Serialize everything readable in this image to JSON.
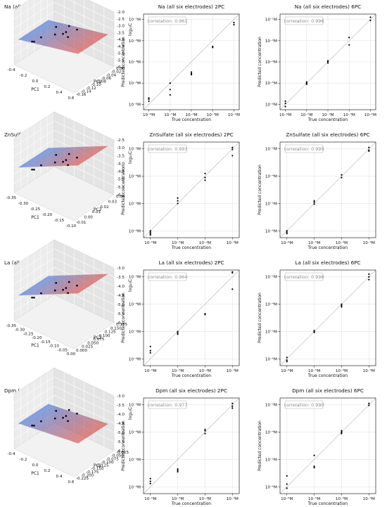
{
  "rows": [
    {
      "scatter3d": {
        "title": "Na  (all six electrodes)  2PC",
        "xlabel": "PC1",
        "ylabel": "PC2",
        "zlabel": "log₁₀C",
        "xticks": [
          "-0.4",
          "-0.2",
          "0.0",
          "0.2",
          "0.4",
          "0.6"
        ],
        "yticks": [
          "0.00",
          "-0.02",
          "-0.04",
          "-0.06",
          "-0.08",
          "-0.10",
          "-0.12",
          "-0.14",
          "-0.16"
        ],
        "zticks": [
          "-2.0",
          "-2.5",
          "-3.0",
          "-3.5",
          "-4.0",
          "-4.5",
          "-5.0",
          "-5.5",
          "-6.0"
        ],
        "plane_tilt": 0.25
      },
      "panels": [
        {
          "title": "Na  (all six electrodes)  2PC",
          "correlation": "correlation: 0.961",
          "xlabel": "True concentration",
          "ylabel": "Predicted concentration",
          "xticks": [
            {
              "exp": -6,
              "label": "10⁻⁶M"
            },
            {
              "exp": -5,
              "label": "10⁻⁵M"
            },
            {
              "exp": -4,
              "label": "10⁻⁴M"
            },
            {
              "exp": -3,
              "label": "10⁻³M"
            },
            {
              "exp": -2,
              "label": "10⁻²M"
            }
          ],
          "yticks": [
            {
              "exp": -6,
              "label": "10⁻⁶M"
            },
            {
              "exp": -5,
              "label": "10⁻⁵M"
            },
            {
              "exp": -4,
              "label": "10⁻⁴M"
            },
            {
              "exp": -3,
              "label": "10⁻³M"
            },
            {
              "exp": -2,
              "label": "10⁻²M"
            }
          ],
          "points": [
            [
              -6,
              -5.85
            ],
            [
              -6,
              -5.75
            ],
            [
              -6,
              -5.7
            ],
            [
              -5,
              -5.3
            ],
            [
              -5,
              -5.55
            ],
            [
              -5,
              -5.0
            ],
            [
              -4,
              -4.55
            ],
            [
              -4,
              -4.48
            ],
            [
              -4,
              -4.6
            ],
            [
              -3,
              -3.32
            ],
            [
              -3,
              -3.28
            ],
            [
              -2,
              -2.15
            ],
            [
              -2,
              -2.25
            ]
          ]
        },
        {
          "title": "Na  (all six electrodes)  6PC",
          "correlation": "correlation: 0.996",
          "xlabel": "True concentration",
          "ylabel": "Predicted concentration",
          "xticks": [
            {
              "exp": -6,
              "label": "10⁻⁶M"
            },
            {
              "exp": -5,
              "label": "10⁻⁵M"
            },
            {
              "exp": -4,
              "label": "10⁻⁴M"
            },
            {
              "exp": -3,
              "label": "10⁻³M"
            },
            {
              "exp": -2,
              "label": "10⁻²M"
            }
          ],
          "yticks": [
            {
              "exp": -6,
              "label": "10⁻⁶M"
            },
            {
              "exp": -5,
              "label": "10⁻⁵M"
            },
            {
              "exp": -4,
              "label": "10⁻⁴M"
            },
            {
              "exp": -3,
              "label": "10⁻³M"
            },
            {
              "exp": -2,
              "label": "10⁻²M"
            }
          ],
          "points": [
            [
              -6,
              -5.95
            ],
            [
              -6,
              -5.85
            ],
            [
              -6,
              -6.1
            ],
            [
              -5,
              -5.05
            ],
            [
              -5,
              -5.0
            ],
            [
              -5,
              -4.95
            ],
            [
              -4,
              -4.05
            ],
            [
              -4,
              -3.98
            ],
            [
              -4,
              -3.95
            ],
            [
              -3,
              -2.85
            ],
            [
              -3,
              -3.2
            ],
            [
              -2,
              -1.9
            ],
            [
              -2,
              -2.05
            ]
          ]
        }
      ]
    },
    {
      "scatter3d": {
        "title": "ZnSulfate  (all six electrodes)  2PC",
        "xlabel": "PC1",
        "ylabel": "PC2",
        "zlabel": "log₁₀C",
        "xticks": [
          "-0.35",
          "-0.30",
          "-0.25",
          "-0.20",
          "-0.15",
          "-0.10"
        ],
        "yticks": [
          "0.04",
          "0.03",
          "0.02",
          "0.01",
          "0.00",
          "-0.01"
        ],
        "zticks": [
          "-2.5",
          "-3.0",
          "-3.5",
          "-4.0",
          "-4.5",
          "-5.0",
          "-5.5",
          "-6.0"
        ],
        "plane_tilt": 0.55
      },
      "panels": [
        {
          "title": "ZnSulfate  (all six electrodes)  2PC",
          "correlation": "correlation: 0.993",
          "xlabel": "True concentration",
          "ylabel": "Predicted concentration",
          "xticks": [
            {
              "exp": -6,
              "label": "10⁻⁶M"
            },
            {
              "exp": -5,
              "label": "10⁻⁵M"
            },
            {
              "exp": -4,
              "label": "10⁻⁴M"
            },
            {
              "exp": -3,
              "label": "10⁻³M"
            }
          ],
          "yticks": [
            {
              "exp": -6,
              "label": "10⁻⁶M"
            },
            {
              "exp": -5,
              "label": "10⁻⁵M"
            },
            {
              "exp": -4,
              "label": "10⁻⁴M"
            },
            {
              "exp": -3,
              "label": "10⁻³M"
            }
          ],
          "points": [
            [
              -6,
              -6.0
            ],
            [
              -6,
              -6.05
            ],
            [
              -6,
              -6.1
            ],
            [
              -6,
              -6.15
            ],
            [
              -5,
              -4.8
            ],
            [
              -5,
              -4.9
            ],
            [
              -5,
              -5.0
            ],
            [
              -4,
              -3.9
            ],
            [
              -4,
              -4.05
            ],
            [
              -4,
              -4.15
            ],
            [
              -3,
              -2.95
            ],
            [
              -3,
              -3.02
            ],
            [
              -3,
              -3.25
            ]
          ]
        },
        {
          "title": "ZnSulfate  (all six electrodes)  6PC",
          "correlation": "correlation: 0.999",
          "xlabel": "True concentration",
          "ylabel": "Predicted concentration",
          "xticks": [
            {
              "exp": -6,
              "label": "10⁻⁶M"
            },
            {
              "exp": -5,
              "label": "10⁻⁵M"
            },
            {
              "exp": -4,
              "label": "10⁻⁴M"
            },
            {
              "exp": -3,
              "label": "10⁻³M"
            }
          ],
          "yticks": [
            {
              "exp": -6,
              "label": "10⁻⁶M"
            },
            {
              "exp": -5,
              "label": "10⁻⁵M"
            },
            {
              "exp": -4,
              "label": "10⁻⁴M"
            },
            {
              "exp": -3,
              "label": "10⁻³M"
            }
          ],
          "points": [
            [
              -6,
              -6.0
            ],
            [
              -6,
              -6.05
            ],
            [
              -6,
              -6.1
            ],
            [
              -5,
              -4.9
            ],
            [
              -5,
              -4.95
            ],
            [
              -5,
              -5.02
            ],
            [
              -4,
              -3.95
            ],
            [
              -4,
              -4.05
            ],
            [
              -3,
              -2.95
            ],
            [
              -3,
              -3.05
            ],
            [
              -3,
              -3.08
            ]
          ]
        }
      ]
    },
    {
      "scatter3d": {
        "title": "La  (all six electrodes)  2PC",
        "xlabel": "PC1",
        "ylabel": "PC2",
        "zlabel": "log₁₀C",
        "xticks": [
          "-0.35",
          "-0.30",
          "-0.25",
          "-0.20",
          "-0.15",
          "-0.10",
          "-0.05",
          "0.00"
        ],
        "yticks": [
          "0.175",
          "0.150",
          "0.125",
          "0.100",
          "0.075",
          "0.050",
          "0.025",
          "0.000"
        ],
        "zticks": [
          "-3.0",
          "-3.5",
          "-4.0",
          "-4.5",
          "-5.0",
          "-5.5",
          "-6.0"
        ],
        "plane_tilt": 0.55
      },
      "panels": [
        {
          "title": "La  (all six electrodes)  2PC",
          "correlation": "correlation: 0.964",
          "xlabel": "True concentration",
          "ylabel": "Predicted concentration",
          "xticks": [
            {
              "exp": -6,
              "label": "10⁻⁶M"
            },
            {
              "exp": -5,
              "label": "10⁻⁵M"
            },
            {
              "exp": -4,
              "label": "10⁻⁴M"
            },
            {
              "exp": -3,
              "label": "10⁻³M"
            }
          ],
          "yticks": [
            {
              "exp": -6,
              "label": "10⁻⁶M"
            },
            {
              "exp": -5,
              "label": "10⁻⁵M"
            },
            {
              "exp": -4,
              "label": "10⁻⁴M"
            },
            {
              "exp": -3,
              "label": "10⁻³M"
            }
          ],
          "points": [
            [
              -6,
              -5.7
            ],
            [
              -6,
              -5.78
            ],
            [
              -6,
              -5.55
            ],
            [
              -5,
              -5.05
            ],
            [
              -5,
              -5.0
            ],
            [
              -5,
              -5.1
            ],
            [
              -4,
              -4.35
            ],
            [
              -4,
              -4.38
            ],
            [
              -3,
              -2.82
            ],
            [
              -3,
              -2.85
            ],
            [
              -3,
              -3.45
            ]
          ]
        },
        {
          "title": "La  (all six electrodes)  6PC",
          "correlation": "correlation: 0.998",
          "xlabel": "True concentration",
          "ylabel": "Predicted concentration",
          "xticks": [
            {
              "exp": -6,
              "label": "10⁻⁶M"
            },
            {
              "exp": -5,
              "label": "10⁻⁵M"
            },
            {
              "exp": -4,
              "label": "10⁻⁴M"
            },
            {
              "exp": -3,
              "label": "10⁻³M"
            }
          ],
          "yticks": [
            {
              "exp": -6,
              "label": "10⁻⁶M"
            },
            {
              "exp": -5,
              "label": "10⁻⁵M"
            },
            {
              "exp": -4,
              "label": "10⁻⁴M"
            },
            {
              "exp": -3,
              "label": "10⁻³M"
            }
          ],
          "points": [
            [
              -6,
              -5.95
            ],
            [
              -6,
              -6.05
            ],
            [
              -6,
              -6.1
            ],
            [
              -5,
              -5.0
            ],
            [
              -5,
              -4.97
            ],
            [
              -5,
              -5.03
            ],
            [
              -4,
              -4.1
            ],
            [
              -4,
              -4.05
            ],
            [
              -4,
              -4.0
            ],
            [
              -3,
              -2.9
            ],
            [
              -3,
              -3.0
            ],
            [
              -3,
              -3.1
            ]
          ]
        }
      ]
    },
    {
      "scatter3d": {
        "title": "Dpm  (all six electrodes)  2PC",
        "xlabel": "PC1",
        "ylabel": "PC2",
        "zlabel": "log₁₀C",
        "xticks": [
          "-0.4",
          "-0.2",
          "0.0",
          "0.2",
          "0.4",
          "0.6"
        ],
        "yticks": [
          "-0.025",
          "-0.050",
          "-0.075",
          "-0.100",
          "-0.125",
          "-0.150",
          "-0.175",
          "-0.200",
          "-0.225"
        ],
        "zticks": [
          "-3.0",
          "-3.5",
          "-4.0",
          "-4.5",
          "-5.0",
          "-5.5",
          "-6.0"
        ],
        "plane_tilt": 0.15
      },
      "panels": [
        {
          "title": "Dpm  (all six electrodes)  2PC",
          "correlation": "correlation: 0.977",
          "xlabel": "True concentration",
          "ylabel": "Predicted concentration",
          "xticks": [
            {
              "exp": -6,
              "label": "10⁻⁶M"
            },
            {
              "exp": -5,
              "label": "10⁻⁵M"
            },
            {
              "exp": -4,
              "label": "10⁻⁴M"
            },
            {
              "exp": -3,
              "label": "10⁻³M"
            }
          ],
          "yticks": [
            {
              "exp": -6,
              "label": "10⁻⁶M"
            },
            {
              "exp": -5,
              "label": "10⁻⁵M"
            },
            {
              "exp": -4,
              "label": "10⁻⁴M"
            },
            {
              "exp": -3,
              "label": "10⁻³M"
            }
          ],
          "points": [
            [
              -6,
              -5.7
            ],
            [
              -6,
              -5.8
            ],
            [
              -6,
              -5.88
            ],
            [
              -5,
              -5.35
            ],
            [
              -5,
              -5.4
            ],
            [
              -5,
              -5.45
            ],
            [
              -4,
              -3.9
            ],
            [
              -4,
              -3.95
            ],
            [
              -4,
              -4.05
            ],
            [
              -3,
              -2.95
            ],
            [
              -3,
              -3.05
            ],
            [
              -3,
              -3.12
            ]
          ]
        },
        {
          "title": "Dpm  (all six electrodes)  6PC",
          "correlation": "correlation: 0.990",
          "xlabel": "True concentration",
          "ylabel": "Predicted concentration",
          "xticks": [
            {
              "exp": -6,
              "label": "10⁻⁶M"
            },
            {
              "exp": -5,
              "label": "10⁻⁵M"
            },
            {
              "exp": -4,
              "label": "10⁻⁴M"
            },
            {
              "exp": -3,
              "label": "10⁻³M"
            }
          ],
          "yticks": [
            {
              "exp": -6,
              "label": "10⁻⁶M"
            },
            {
              "exp": -5,
              "label": "10⁻⁵M"
            },
            {
              "exp": -4,
              "label": "10⁻⁴M"
            },
            {
              "exp": -3,
              "label": "10⁻³M"
            }
          ],
          "points": [
            [
              -6,
              -5.6
            ],
            [
              -6,
              -5.9
            ],
            [
              -6,
              -6.05
            ],
            [
              -5,
              -4.85
            ],
            [
              -5,
              -5.25
            ],
            [
              -5,
              -5.3
            ],
            [
              -4,
              -3.95
            ],
            [
              -4,
              -4.0
            ],
            [
              -4,
              -4.05
            ],
            [
              -3,
              -2.95
            ],
            [
              -3,
              -3.02
            ]
          ]
        }
      ]
    }
  ],
  "colors": {
    "marker": "#000000",
    "identity_line": "#bdbdbd",
    "grid": "#e3e3e3",
    "correlation_text": "#8a8a8a",
    "plane_low": "#3b6fd6",
    "plane_high": "#d9463c"
  },
  "chart_data": [
    {
      "type": "scatter",
      "title": "Na  (all six electrodes)  2PC",
      "xlabel": "True concentration",
      "ylabel": "Predicted concentration",
      "scale": "log",
      "correlation": "0.961"
    },
    {
      "type": "scatter",
      "title": "Na  (all six electrodes)  6PC",
      "xlabel": "True concentration",
      "ylabel": "Predicted concentration",
      "scale": "log",
      "correlation": "0.996"
    },
    {
      "type": "scatter",
      "title": "ZnSulfate  (all six electrodes)  2PC",
      "xlabel": "True concentration",
      "ylabel": "Predicted concentration",
      "scale": "log",
      "correlation": "0.993"
    },
    {
      "type": "scatter",
      "title": "ZnSulfate  (all six electrodes)  6PC",
      "xlabel": "True concentration",
      "ylabel": "Predicted concentration",
      "scale": "log",
      "correlation": "0.999"
    },
    {
      "type": "scatter",
      "title": "La  (all six electrodes)  2PC",
      "xlabel": "True concentration",
      "ylabel": "Predicted concentration",
      "scale": "log",
      "correlation": "0.964"
    },
    {
      "type": "scatter",
      "title": "La  (all six electrodes)  6PC",
      "xlabel": "True concentration",
      "ylabel": "Predicted concentration",
      "scale": "log",
      "correlation": "0.998"
    },
    {
      "type": "scatter",
      "title": "Dpm  (all six electrodes)  2PC",
      "xlabel": "True concentration",
      "ylabel": "Predicted concentration",
      "scale": "log",
      "correlation": "0.977"
    },
    {
      "type": "scatter",
      "title": "Dpm  (all six electrodes)  6PC",
      "xlabel": "True concentration",
      "ylabel": "Predicted concentration",
      "scale": "log",
      "correlation": "0.990"
    }
  ]
}
